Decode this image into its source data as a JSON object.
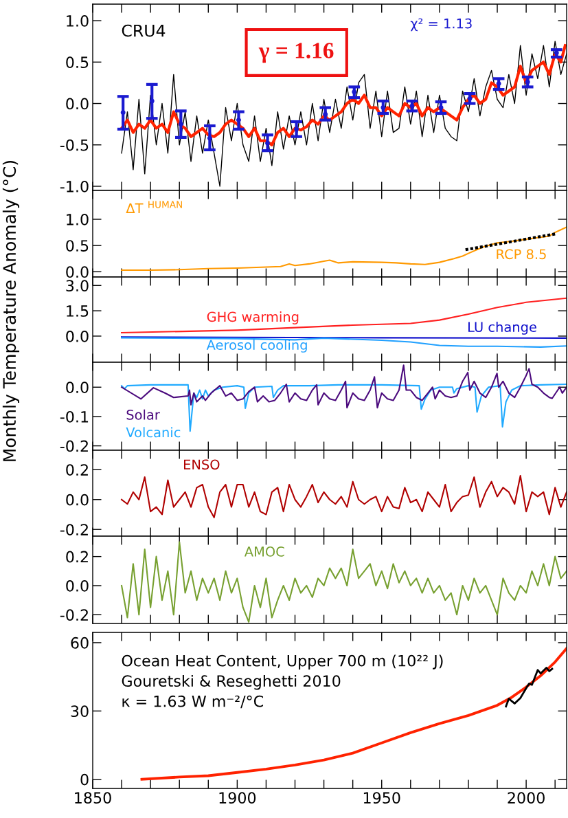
{
  "chart_data": [
    {
      "type": "line",
      "xlim": [
        1850,
        2014
      ],
      "ylim": [
        -1.05,
        1.2
      ],
      "tick_labels": "y",
      "xticks": [
        {
          "value": 1850,
          "label": null
        },
        {
          "value": 1860,
          "label": null
        },
        {
          "value": 1870,
          "label": null
        },
        {
          "value": 1880,
          "label": null
        },
        {
          "value": 1890,
          "label": null
        },
        {
          "value": 1900,
          "label": null
        },
        {
          "value": 1910,
          "label": null
        },
        {
          "value": 1920,
          "label": null
        },
        {
          "value": 1930,
          "label": null
        },
        {
          "value": 1940,
          "label": null
        },
        {
          "value": 1950,
          "label": null
        },
        {
          "value": 1960,
          "label": null
        },
        {
          "value": 1970,
          "label": null
        },
        {
          "value": 1980,
          "label": null
        },
        {
          "value": 1990,
          "label": null
        },
        {
          "value": 2000,
          "label": null
        },
        {
          "value": 2010,
          "label": null
        }
      ],
      "yticks": [
        {
          "value": -1.0,
          "label": "-1.0"
        },
        {
          "value": -0.5,
          "label": "-0.5"
        },
        {
          "value": 0.0,
          "label": "0.0"
        },
        {
          "value": 0.5,
          "label": "0.5"
        },
        {
          "value": 1.0,
          "label": "1.0"
        }
      ],
      "annotations": [
        "CRU4",
        "γ = 1.16",
        "χ² = 1.13"
      ],
      "series": [
        {
          "color": "#000000",
          "x": [
            1860,
            1862,
            1864,
            1866,
            1868,
            1870,
            1872,
            1874,
            1876,
            1878,
            1880,
            1882,
            1884,
            1886,
            1888,
            1890,
            1892,
            1894,
            1896,
            1898,
            1900,
            1902,
            1904,
            1906,
            1908,
            1910,
            1912,
            1914,
            1916,
            1918,
            1920,
            1922,
            1924,
            1926,
            1928,
            1930,
            1932,
            1934,
            1936,
            1938,
            1940,
            1942,
            1944,
            1946,
            1948,
            1950,
            1952,
            1954,
            1956,
            1958,
            1960,
            1962,
            1964,
            1966,
            1968,
            1970,
            1972,
            1974,
            1976,
            1978,
            1980,
            1982,
            1984,
            1986,
            1988,
            1990,
            1992,
            1994,
            1996,
            1998,
            2000,
            2002,
            2004,
            2006,
            2008,
            2010,
            2012,
            2014
          ],
          "values": [
            -0.6,
            -0.1,
            -0.8,
            0.05,
            -0.85,
            0.1,
            -0.5,
            0.0,
            -0.6,
            0.35,
            -0.5,
            -0.1,
            -0.7,
            -0.15,
            -0.6,
            -0.2,
            -0.6,
            -1.0,
            -0.05,
            -0.45,
            0.0,
            -0.5,
            -0.7,
            -0.15,
            -0.7,
            -0.3,
            -0.75,
            -0.1,
            -0.55,
            -0.15,
            -0.5,
            -0.1,
            -0.5,
            0.0,
            -0.45,
            0.05,
            -0.35,
            0.05,
            -0.3,
            0.2,
            -0.2,
            0.25,
            0.35,
            -0.3,
            0.15,
            -0.4,
            0.15,
            -0.35,
            -0.3,
            0.2,
            -0.25,
            0.15,
            -0.4,
            0.1,
            -0.35,
            0.1,
            -0.3,
            -0.4,
            -0.45,
            0.15,
            -0.1,
            0.3,
            -0.15,
            0.2,
            0.4,
            0.05,
            -0.05,
            0.35,
            0.0,
            0.7,
            0.1,
            0.6,
            0.3,
            0.7,
            0.2,
            0.75,
            0.35,
            0.6
          ]
        },
        {
          "color": "#ff2200",
          "x": [
            1860,
            1862,
            1864,
            1866,
            1868,
            1870,
            1872,
            1874,
            1876,
            1878,
            1880,
            1882,
            1884,
            1886,
            1888,
            1890,
            1892,
            1894,
            1896,
            1898,
            1900,
            1902,
            1904,
            1906,
            1908,
            1910,
            1912,
            1914,
            1916,
            1918,
            1920,
            1922,
            1924,
            1926,
            1928,
            1930,
            1932,
            1934,
            1936,
            1938,
            1940,
            1942,
            1944,
            1946,
            1948,
            1950,
            1952,
            1954,
            1956,
            1958,
            1960,
            1962,
            1964,
            1966,
            1968,
            1970,
            1972,
            1974,
            1976,
            1978,
            1980,
            1982,
            1984,
            1986,
            1988,
            1990,
            1992,
            1994,
            1996,
            1998,
            2000,
            2002,
            2004,
            2006,
            2008,
            2010,
            2012,
            2013.5
          ],
          "values": [
            -0.3,
            -0.2,
            -0.35,
            -0.25,
            -0.3,
            -0.2,
            -0.3,
            -0.25,
            -0.35,
            -0.1,
            -0.25,
            -0.3,
            -0.4,
            -0.35,
            -0.3,
            -0.38,
            -0.4,
            -0.35,
            -0.25,
            -0.2,
            -0.25,
            -0.3,
            -0.4,
            -0.3,
            -0.45,
            -0.45,
            -0.5,
            -0.35,
            -0.3,
            -0.4,
            -0.3,
            -0.32,
            -0.28,
            -0.2,
            -0.25,
            -0.15,
            -0.2,
            -0.15,
            -0.1,
            0.0,
            0.05,
            0.0,
            0.1,
            -0.05,
            -0.05,
            -0.15,
            -0.05,
            -0.1,
            -0.15,
            0.0,
            -0.05,
            0.0,
            -0.15,
            -0.05,
            -0.1,
            -0.05,
            -0.1,
            -0.15,
            -0.2,
            -0.05,
            0.05,
            0.1,
            0.0,
            0.05,
            0.25,
            0.2,
            0.1,
            0.15,
            0.2,
            0.45,
            0.25,
            0.4,
            0.45,
            0.5,
            0.35,
            0.6,
            0.5,
            0.7
          ]
        },
        {
          "type": "scatter",
          "marker": "circle",
          "color": "#1a1ad0",
          "x": [
            1860.5,
            1870.5,
            1880.5,
            1890.5,
            1900.5,
            1910.5,
            1920.5,
            1930.5,
            1940.5,
            1950.5,
            1960.5,
            1970.5,
            1980.5,
            1990.5,
            2000.5,
            2010.5
          ],
          "values": [
            -0.11,
            0.03,
            -0.25,
            -0.42,
            -0.2,
            -0.48,
            -0.31,
            -0.13,
            0.14,
            -0.05,
            -0.03,
            -0.05,
            0.06,
            0.24,
            0.26,
            0.61
          ],
          "errors": [
            [
              -0.31,
              0.085
            ],
            [
              -0.18,
              0.23
            ],
            [
              -0.41,
              -0.09
            ],
            [
              -0.56,
              -0.27
            ],
            [
              -0.31,
              -0.1
            ],
            [
              -0.57,
              -0.38
            ],
            [
              -0.4,
              -0.22
            ],
            [
              -0.2,
              -0.05
            ],
            [
              0.07,
              0.2
            ],
            [
              -0.12,
              0.03
            ],
            [
              -0.09,
              0.03
            ],
            [
              -0.12,
              0.02
            ],
            [
              0.0,
              0.12
            ],
            [
              0.17,
              0.3
            ],
            [
              0.2,
              0.32
            ],
            [
              0.56,
              0.65
            ]
          ]
        }
      ]
    },
    {
      "type": "line",
      "xlim": [
        1850,
        2014
      ],
      "ylim": [
        -0.1,
        1.55
      ],
      "tick_labels": "y",
      "xticks": [
        {
          "value": 1850,
          "label": null
        },
        {
          "value": 1860,
          "label": null
        },
        {
          "value": 1870,
          "label": null
        },
        {
          "value": 1880,
          "label": null
        },
        {
          "value": 1890,
          "label": null
        },
        {
          "value": 1900,
          "label": null
        },
        {
          "value": 1910,
          "label": null
        },
        {
          "value": 1920,
          "label": null
        },
        {
          "value": 1930,
          "label": null
        },
        {
          "value": 1940,
          "label": null
        },
        {
          "value": 1950,
          "label": null
        },
        {
          "value": 1960,
          "label": null
        },
        {
          "value": 1970,
          "label": null
        },
        {
          "value": 1980,
          "label": null
        },
        {
          "value": 1990,
          "label": null
        },
        {
          "value": 2000,
          "label": null
        },
        {
          "value": 2010,
          "label": null
        }
      ],
      "yticks": [
        {
          "value": 0.0,
          "label": "0.0"
        },
        {
          "value": 0.5,
          "label": "0.5"
        },
        {
          "value": 1.0,
          "label": "1.0"
        }
      ],
      "annotations": [
        "ΔT $^{HUMAN}$",
        "RCP 8.5"
      ],
      "series": [
        {
          "color": "#ff9900",
          "x": [
            1860,
            1870,
            1880,
            1890,
            1900,
            1910,
            1915,
            1918,
            1920,
            1925,
            1930,
            1932,
            1935,
            1940,
            1950,
            1955,
            1960,
            1965,
            1970,
            1975,
            1978,
            1980,
            1985,
            1990,
            1995,
            2000,
            2004,
            2008,
            2010,
            2012,
            2014
          ],
          "values": [
            0.03,
            0.03,
            0.04,
            0.06,
            0.07,
            0.09,
            0.1,
            0.15,
            0.12,
            0.15,
            0.2,
            0.22,
            0.17,
            0.19,
            0.18,
            0.17,
            0.15,
            0.14,
            0.18,
            0.25,
            0.3,
            0.35,
            0.47,
            0.55,
            0.58,
            0.62,
            0.65,
            0.68,
            0.75,
            0.8,
            0.85
          ]
        },
        {
          "color": "#000000",
          "line_style": "dotted",
          "x": [
            1979,
            2010
          ],
          "values": [
            0.42,
            0.72
          ]
        }
      ]
    },
    {
      "type": "line",
      "xlim": [
        1850,
        2014
      ],
      "ylim": [
        -1.55,
        3.5
      ],
      "tick_labels": "y",
      "ylabel": "Monthly Temperature Anomaly (°C)",
      "xticks": [
        {
          "value": 1850,
          "label": null
        },
        {
          "value": 1860,
          "label": null
        },
        {
          "value": 1870,
          "label": null
        },
        {
          "value": 1880,
          "label": null
        },
        {
          "value": 1890,
          "label": null
        },
        {
          "value": 1900,
          "label": null
        },
        {
          "value": 1910,
          "label": null
        },
        {
          "value": 1920,
          "label": null
        },
        {
          "value": 1930,
          "label": null
        },
        {
          "value": 1940,
          "label": null
        },
        {
          "value": 1950,
          "label": null
        },
        {
          "value": 1960,
          "label": null
        },
        {
          "value": 1970,
          "label": null
        },
        {
          "value": 1980,
          "label": null
        },
        {
          "value": 1990,
          "label": null
        },
        {
          "value": 2000,
          "label": null
        },
        {
          "value": 2010,
          "label": null
        }
      ],
      "yticks": [
        {
          "value": 0.0,
          "label": "0.0"
        },
        {
          "value": 1.5,
          "label": "1.5"
        },
        {
          "value": 3.0,
          "label": "3.0"
        }
      ],
      "series": [
        {
          "name": "GHG warming",
          "color": "#ff2020",
          "x": [
            1860,
            1900,
            1920,
            1940,
            1950,
            1960,
            1970,
            1980,
            1990,
            2000,
            2014
          ],
          "values": [
            0.2,
            0.35,
            0.5,
            0.65,
            0.7,
            0.75,
            0.95,
            1.3,
            1.7,
            2.0,
            2.25
          ]
        },
        {
          "name": "LU change",
          "color": "#1010cc",
          "x": [
            1860,
            1950,
            2014
          ],
          "values": [
            -0.05,
            -0.1,
            -0.12
          ]
        },
        {
          "name": "Aerosol cooling",
          "color": "#20a0ff",
          "x": [
            1860,
            1900,
            1920,
            1930,
            1950,
            1960,
            1970,
            1980,
            1990,
            2005,
            2014
          ],
          "values": [
            -0.1,
            -0.15,
            -0.22,
            -0.12,
            -0.25,
            -0.35,
            -0.55,
            -0.6,
            -0.6,
            -0.65,
            -0.58
          ]
        }
      ]
    },
    {
      "type": "line",
      "xlim": [
        1850,
        2014
      ],
      "ylim": [
        -0.215,
        0.085
      ],
      "tick_labels": "y",
      "xticks": [
        {
          "value": 1850,
          "label": null
        },
        {
          "value": 1860,
          "label": null
        },
        {
          "value": 1870,
          "label": null
        },
        {
          "value": 1880,
          "label": null
        },
        {
          "value": 1890,
          "label": null
        },
        {
          "value": 1900,
          "label": null
        },
        {
          "value": 1910,
          "label": null
        },
        {
          "value": 1920,
          "label": null
        },
        {
          "value": 1930,
          "label": null
        },
        {
          "value": 1940,
          "label": null
        },
        {
          "value": 1950,
          "label": null
        },
        {
          "value": 1960,
          "label": null
        },
        {
          "value": 1970,
          "label": null
        },
        {
          "value": 1980,
          "label": null
        },
        {
          "value": 1990,
          "label": null
        },
        {
          "value": 2000,
          "label": null
        },
        {
          "value": 2010,
          "label": null
        }
      ],
      "yticks": [
        {
          "value": -0.2,
          "label": "-0.2"
        },
        {
          "value": -0.1,
          "label": "-0.1"
        },
        {
          "value": 0.0,
          "label": "0.0"
        }
      ],
      "series": [
        {
          "name": "Volcanic",
          "color": "#20aaff",
          "x": [
            1860,
            1861,
            1862,
            1870,
            1883,
            1883.7,
            1885,
            1886,
            1887,
            1888,
            1889,
            1890,
            1892,
            1895,
            1900,
            1902.3,
            1902.8,
            1904,
            1906,
            1912,
            1912.5,
            1914,
            1916,
            1925,
            1935,
            1950,
            1963,
            1963.7,
            1965,
            1967,
            1970,
            1974.5,
            1975,
            1976,
            1980,
            1982.3,
            1983,
            1984.5,
            1987,
            1991,
            1991.8,
            1993,
            1995,
            1998,
            2005,
            2014
          ],
          "values": [
            0.005,
            -0.005,
            0.005,
            0.008,
            0.008,
            -0.15,
            -0.02,
            -0.035,
            -0.01,
            -0.04,
            -0.01,
            -0.03,
            -0.01,
            0.0,
            0.005,
            0.0,
            -0.072,
            -0.02,
            0.0,
            0.003,
            -0.035,
            -0.01,
            0.005,
            0.005,
            0.008,
            0.008,
            0.005,
            -0.075,
            -0.04,
            -0.01,
            0.0,
            0.0,
            -0.02,
            -0.005,
            0.005,
            0.0,
            -0.085,
            -0.03,
            0.0,
            0.005,
            -0.135,
            -0.05,
            -0.01,
            0.005,
            0.008,
            0.01
          ]
        },
        {
          "name": "Solar",
          "color": "#4b0a7d",
          "x": [
            1860,
            1866.7,
            1871,
            1875,
            1878,
            1883,
            1883.5,
            1884,
            1885,
            1886,
            1888,
            1889,
            1891,
            1894,
            1896,
            1898,
            1900,
            1902,
            1904,
            1906,
            1907,
            1909,
            1911,
            1913,
            1915,
            1917,
            1918,
            1920,
            1922,
            1924,
            1926,
            1927.5,
            1928,
            1930,
            1932,
            1934,
            1936,
            1937.5,
            1938,
            1940,
            1942,
            1944,
            1946,
            1947.5,
            1948.5,
            1950,
            1952,
            1954,
            1956,
            1957.6,
            1958.5,
            1960,
            1962,
            1964,
            1966,
            1967.6,
            1968.5,
            1970,
            1972,
            1974,
            1976,
            1978,
            1979.8,
            1980.5,
            1982,
            1984,
            1986,
            1988,
            1989.9,
            1990.5,
            1992,
            1994,
            1996,
            1998,
            2000,
            2001,
            2002,
            2004,
            2006,
            2008,
            2009,
            2011.6,
            2012.5,
            2014
          ],
          "values": [
            0.0,
            -0.04,
            -0.002,
            -0.02,
            -0.035,
            -0.03,
            -0.01,
            -0.06,
            -0.02,
            -0.05,
            -0.03,
            -0.045,
            -0.02,
            0.005,
            -0.03,
            -0.02,
            -0.045,
            -0.04,
            -0.015,
            0.0,
            -0.05,
            -0.03,
            -0.05,
            -0.045,
            -0.02,
            0.01,
            -0.05,
            -0.02,
            -0.04,
            -0.045,
            -0.01,
            0.008,
            -0.06,
            -0.02,
            -0.04,
            -0.045,
            -0.01,
            0.02,
            -0.07,
            -0.02,
            -0.04,
            -0.045,
            -0.01,
            0.035,
            -0.07,
            -0.02,
            -0.04,
            -0.045,
            -0.01,
            0.075,
            -0.01,
            -0.01,
            -0.035,
            -0.045,
            -0.02,
            0.0,
            -0.04,
            -0.01,
            -0.03,
            -0.035,
            -0.03,
            0.02,
            0.05,
            -0.01,
            0.02,
            -0.02,
            -0.035,
            0.0,
            0.047,
            0.0,
            0.02,
            -0.02,
            -0.035,
            0.0,
            0.04,
            0.063,
            0.01,
            0.0,
            -0.02,
            -0.035,
            -0.038,
            0.0,
            -0.02,
            0.0
          ]
        }
      ]
    },
    {
      "type": "line",
      "xlim": [
        1850,
        2014
      ],
      "ylim": [
        -0.245,
        0.33
      ],
      "tick_labels": "y",
      "xticks": [
        {
          "value": 1850,
          "label": null
        },
        {
          "value": 1860,
          "label": null
        },
        {
          "value": 1870,
          "label": null
        },
        {
          "value": 1880,
          "label": null
        },
        {
          "value": 1890,
          "label": null
        },
        {
          "value": 1900,
          "label": null
        },
        {
          "value": 1910,
          "label": null
        },
        {
          "value": 1920,
          "label": null
        },
        {
          "value": 1930,
          "label": null
        },
        {
          "value": 1940,
          "label": null
        },
        {
          "value": 1950,
          "label": null
        },
        {
          "value": 1960,
          "label": null
        },
        {
          "value": 1970,
          "label": null
        },
        {
          "value": 1980,
          "label": null
        },
        {
          "value": 1990,
          "label": null
        },
        {
          "value": 2000,
          "label": null
        },
        {
          "value": 2010,
          "label": null
        }
      ],
      "yticks": [
        {
          "value": -0.2,
          "label": "-0.2"
        },
        {
          "value": 0.0,
          "label": "0.0"
        },
        {
          "value": 0.2,
          "label": "0.2"
        }
      ],
      "series": [
        {
          "name": "ENSO",
          "color": "#b00000",
          "x": [
            1860,
            1862,
            1864,
            1866,
            1868,
            1870,
            1872,
            1874,
            1876,
            1878,
            1880,
            1882,
            1884,
            1886,
            1888,
            1890,
            1892,
            1894,
            1896,
            1898,
            1900,
            1902,
            1904,
            1906,
            1908,
            1910,
            1912,
            1914,
            1916,
            1918,
            1920,
            1922,
            1924,
            1926,
            1928,
            1930,
            1932,
            1934,
            1936,
            1938,
            1940,
            1942,
            1944,
            1946,
            1948,
            1950,
            1952,
            1954,
            1956,
            1958,
            1960,
            1962,
            1964,
            1966,
            1968,
            1970,
            1972,
            1974,
            1976,
            1978,
            1980,
            1982,
            1984,
            1986,
            1988,
            1990,
            1992,
            1994,
            1996,
            1998,
            2000,
            2002,
            2004,
            2006,
            2008,
            2010,
            2012,
            2014
          ],
          "values": [
            0.0,
            -0.03,
            0.05,
            0.0,
            0.15,
            -0.08,
            -0.05,
            -0.1,
            0.13,
            -0.05,
            0.0,
            0.05,
            -0.05,
            0.08,
            0.1,
            -0.05,
            -0.12,
            0.05,
            0.1,
            -0.05,
            0.1,
            0.1,
            -0.05,
            0.05,
            -0.08,
            -0.1,
            0.05,
            0.08,
            -0.08,
            0.1,
            0.0,
            -0.05,
            0.02,
            0.1,
            -0.02,
            0.05,
            0.0,
            -0.03,
            0.02,
            -0.05,
            0.12,
            0.0,
            -0.03,
            0.0,
            0.02,
            -0.08,
            0.02,
            -0.05,
            -0.06,
            0.08,
            -0.02,
            0.0,
            -0.08,
            0.05,
            0.0,
            -0.05,
            0.1,
            -0.08,
            -0.02,
            0.02,
            0.03,
            0.15,
            -0.05,
            0.05,
            0.12,
            0.02,
            0.08,
            0.05,
            -0.03,
            0.16,
            -0.08,
            0.05,
            0.02,
            0.05,
            -0.1,
            0.08,
            -0.05,
            0.05
          ]
        }
      ]
    },
    {
      "type": "line",
      "xlim": [
        1850,
        2014
      ],
      "ylim": [
        -0.26,
        0.34
      ],
      "tick_labels": "y",
      "xticks": [
        {
          "value": 1850,
          "label": null
        },
        {
          "value": 1860,
          "label": null
        },
        {
          "value": 1870,
          "label": null
        },
        {
          "value": 1880,
          "label": null
        },
        {
          "value": 1890,
          "label": null
        },
        {
          "value": 1900,
          "label": null
        },
        {
          "value": 1910,
          "label": null
        },
        {
          "value": 1920,
          "label": null
        },
        {
          "value": 1930,
          "label": null
        },
        {
          "value": 1940,
          "label": null
        },
        {
          "value": 1950,
          "label": null
        },
        {
          "value": 1960,
          "label": null
        },
        {
          "value": 1970,
          "label": null
        },
        {
          "value": 1980,
          "label": null
        },
        {
          "value": 1990,
          "label": null
        },
        {
          "value": 2000,
          "label": null
        },
        {
          "value": 2010,
          "label": null
        }
      ],
      "yticks": [
        {
          "value": -0.2,
          "label": "-0.2"
        },
        {
          "value": 0.0,
          "label": "0.0"
        },
        {
          "value": 0.2,
          "label": "0.2"
        }
      ],
      "series": [
        {
          "name": "AMOC",
          "color": "#77a030",
          "x": [
            1860,
            1862,
            1864,
            1866,
            1868,
            1870,
            1872,
            1874,
            1876,
            1878,
            1880,
            1882,
            1884,
            1886,
            1888,
            1890,
            1892,
            1894,
            1896,
            1898,
            1900,
            1902,
            1904,
            1906,
            1908,
            1910,
            1912,
            1914,
            1916,
            1918,
            1920,
            1922,
            1924,
            1926,
            1928,
            1930,
            1932,
            1934,
            1936,
            1938,
            1940,
            1942,
            1944,
            1946,
            1948,
            1950,
            1952,
            1954,
            1956,
            1958,
            1960,
            1962,
            1964,
            1966,
            1968,
            1970,
            1972,
            1974,
            1976,
            1978,
            1980,
            1982,
            1984,
            1986,
            1988,
            1990,
            1992,
            1994,
            1996,
            1998,
            2000,
            2002,
            2004,
            2006,
            2008,
            2010,
            2012,
            2014
          ],
          "values": [
            0.0,
            -0.22,
            0.15,
            -0.2,
            0.25,
            -0.15,
            0.2,
            -0.1,
            0.1,
            -0.2,
            0.3,
            -0.05,
            0.1,
            -0.1,
            0.05,
            -0.05,
            0.05,
            -0.1,
            0.1,
            -0.05,
            0.05,
            -0.15,
            -0.25,
            0.0,
            -0.15,
            0.05,
            -0.22,
            -0.1,
            0.0,
            -0.1,
            0.05,
            -0.05,
            0.0,
            -0.08,
            0.05,
            0.0,
            0.12,
            0.05,
            0.12,
            0.0,
            0.25,
            0.05,
            0.1,
            0.15,
            0.0,
            0.1,
            -0.02,
            0.15,
            0.02,
            0.1,
            0.0,
            0.05,
            -0.05,
            0.05,
            -0.05,
            0.0,
            -0.1,
            -0.05,
            -0.2,
            0.0,
            -0.1,
            0.05,
            -0.05,
            0.0,
            -0.1,
            -0.2,
            0.05,
            -0.05,
            -0.1,
            0.0,
            -0.05,
            0.1,
            0.0,
            0.15,
            0.0,
            0.2,
            0.05,
            0.1
          ]
        }
      ]
    },
    {
      "type": "line",
      "xlim": [
        1850,
        2014
      ],
      "ylim": [
        -4,
        64.5
      ],
      "xticks": [
        {
          "value": 1850,
          "label": "1850"
        },
        {
          "value": 1860,
          "label": null
        },
        {
          "value": 1870,
          "label": null
        },
        {
          "value": 1880,
          "label": null
        },
        {
          "value": 1890,
          "label": null
        },
        {
          "value": 1900,
          "label": "1900"
        },
        {
          "value": 1910,
          "label": null
        },
        {
          "value": 1920,
          "label": null
        },
        {
          "value": 1930,
          "label": null
        },
        {
          "value": 1940,
          "label": null
        },
        {
          "value": 1950,
          "label": "1950"
        },
        {
          "value": 1960,
          "label": null
        },
        {
          "value": 1970,
          "label": null
        },
        {
          "value": 1980,
          "label": null
        },
        {
          "value": 1990,
          "label": null
        },
        {
          "value": 2000,
          "label": "2000"
        },
        {
          "value": 2010,
          "label": null
        }
      ],
      "yticks": [
        0,
        30,
        60
      ],
      "annotations": [
        "Ocean Heat Content, Upper 700 m (10²² J)",
        "Gouretski & Reseghetti 2010",
        "κ = 1.63 W m⁻²/°C"
      ],
      "series": [
        {
          "color": "#ff2200",
          "x": [
            1867,
            1880,
            1890,
            1900,
            1910,
            1920,
            1930,
            1940,
            1950,
            1960,
            1970,
            1980,
            1990,
            1995,
            2000,
            2005,
            2010,
            2014
          ],
          "values": [
            0,
            1,
            1.6,
            3,
            4.5,
            6.3,
            8.5,
            11.5,
            16,
            20.5,
            24.5,
            28,
            32.5,
            36,
            40.5,
            45.5,
            51.5,
            57.5
          ]
        },
        {
          "color": "#000000",
          "x": [
            1993,
            1994,
            1996,
            1998,
            2000,
            2001,
            2002,
            2004,
            2005,
            2007,
            2008,
            2009
          ],
          "values": [
            32,
            35.4,
            33.3,
            35.7,
            40,
            42,
            41.5,
            48,
            46.5,
            49,
            47.5,
            48.5
          ]
        }
      ]
    }
  ]
}
